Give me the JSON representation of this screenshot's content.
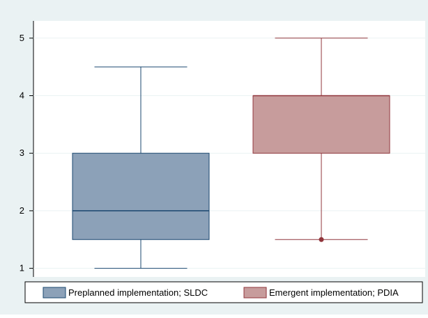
{
  "chart_data": {
    "type": "box",
    "title": "",
    "xlabel": "",
    "ylabel": "",
    "ylim": [
      0.85,
      5.3
    ],
    "yticks": [
      1,
      2,
      3,
      4,
      5
    ],
    "grid": "horizontal",
    "legend_position": "bottom",
    "series": [
      {
        "name": "Preplanned implementation; SLDC",
        "color": "#8ca1b8",
        "stroke": "#1a476f",
        "whisker_low": 1,
        "q1": 1.5,
        "median": 2,
        "q3": 3,
        "whisker_high": 4.5,
        "outliers": []
      },
      {
        "name": "Emergent implementation; PDIA",
        "color": "#c79c9c",
        "stroke": "#90353b",
        "whisker_low": 1.5,
        "q1": 3,
        "median": 4,
        "q3": 4,
        "whisker_high": 5,
        "outliers": [
          1.5
        ]
      }
    ]
  }
}
